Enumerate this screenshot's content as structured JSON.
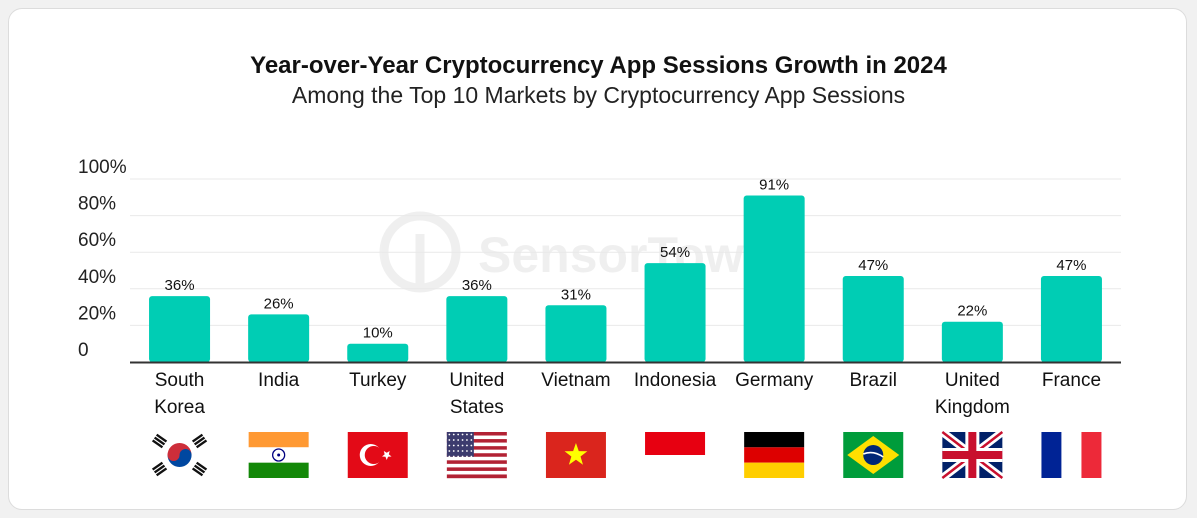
{
  "title": "Year-over-Year Cryptocurrency App Sessions Growth in 2024",
  "subtitle": "Among the Top 10 Markets by Cryptocurrency App Sessions",
  "watermark": "SensorTower",
  "bar_color": "#00cdb4",
  "chart_data": {
    "type": "bar",
    "categories": [
      "South Korea",
      "India",
      "Turkey",
      "United States",
      "Vietnam",
      "Indonesia",
      "Germany",
      "Brazil",
      "United Kingdom",
      "France"
    ],
    "category_lines": [
      [
        "South",
        "Korea"
      ],
      [
        "India"
      ],
      [
        "Turkey"
      ],
      [
        "United",
        "States"
      ],
      [
        "Vietnam"
      ],
      [
        "Indonesia"
      ],
      [
        "Germany"
      ],
      [
        "Brazil"
      ],
      [
        "United",
        "Kingdom"
      ],
      [
        "France"
      ]
    ],
    "values": [
      36,
      26,
      10,
      36,
      31,
      54,
      91,
      47,
      22,
      47
    ],
    "value_labels": [
      "36%",
      "26%",
      "10%",
      "36%",
      "31%",
      "54%",
      "91%",
      "47%",
      "22%",
      "47%"
    ],
    "yticks": [
      "0",
      "20%",
      "40%",
      "60%",
      "80%",
      "100%"
    ],
    "ylim": [
      0,
      100
    ],
    "grid": true,
    "flag_icons": [
      "south-korea-flag-icon",
      "india-flag-icon",
      "turkey-flag-icon",
      "united-states-flag-icon",
      "vietnam-flag-icon",
      "indonesia-flag-icon",
      "germany-flag-icon",
      "brazil-flag-icon",
      "united-kingdom-flag-icon",
      "france-flag-icon"
    ]
  }
}
